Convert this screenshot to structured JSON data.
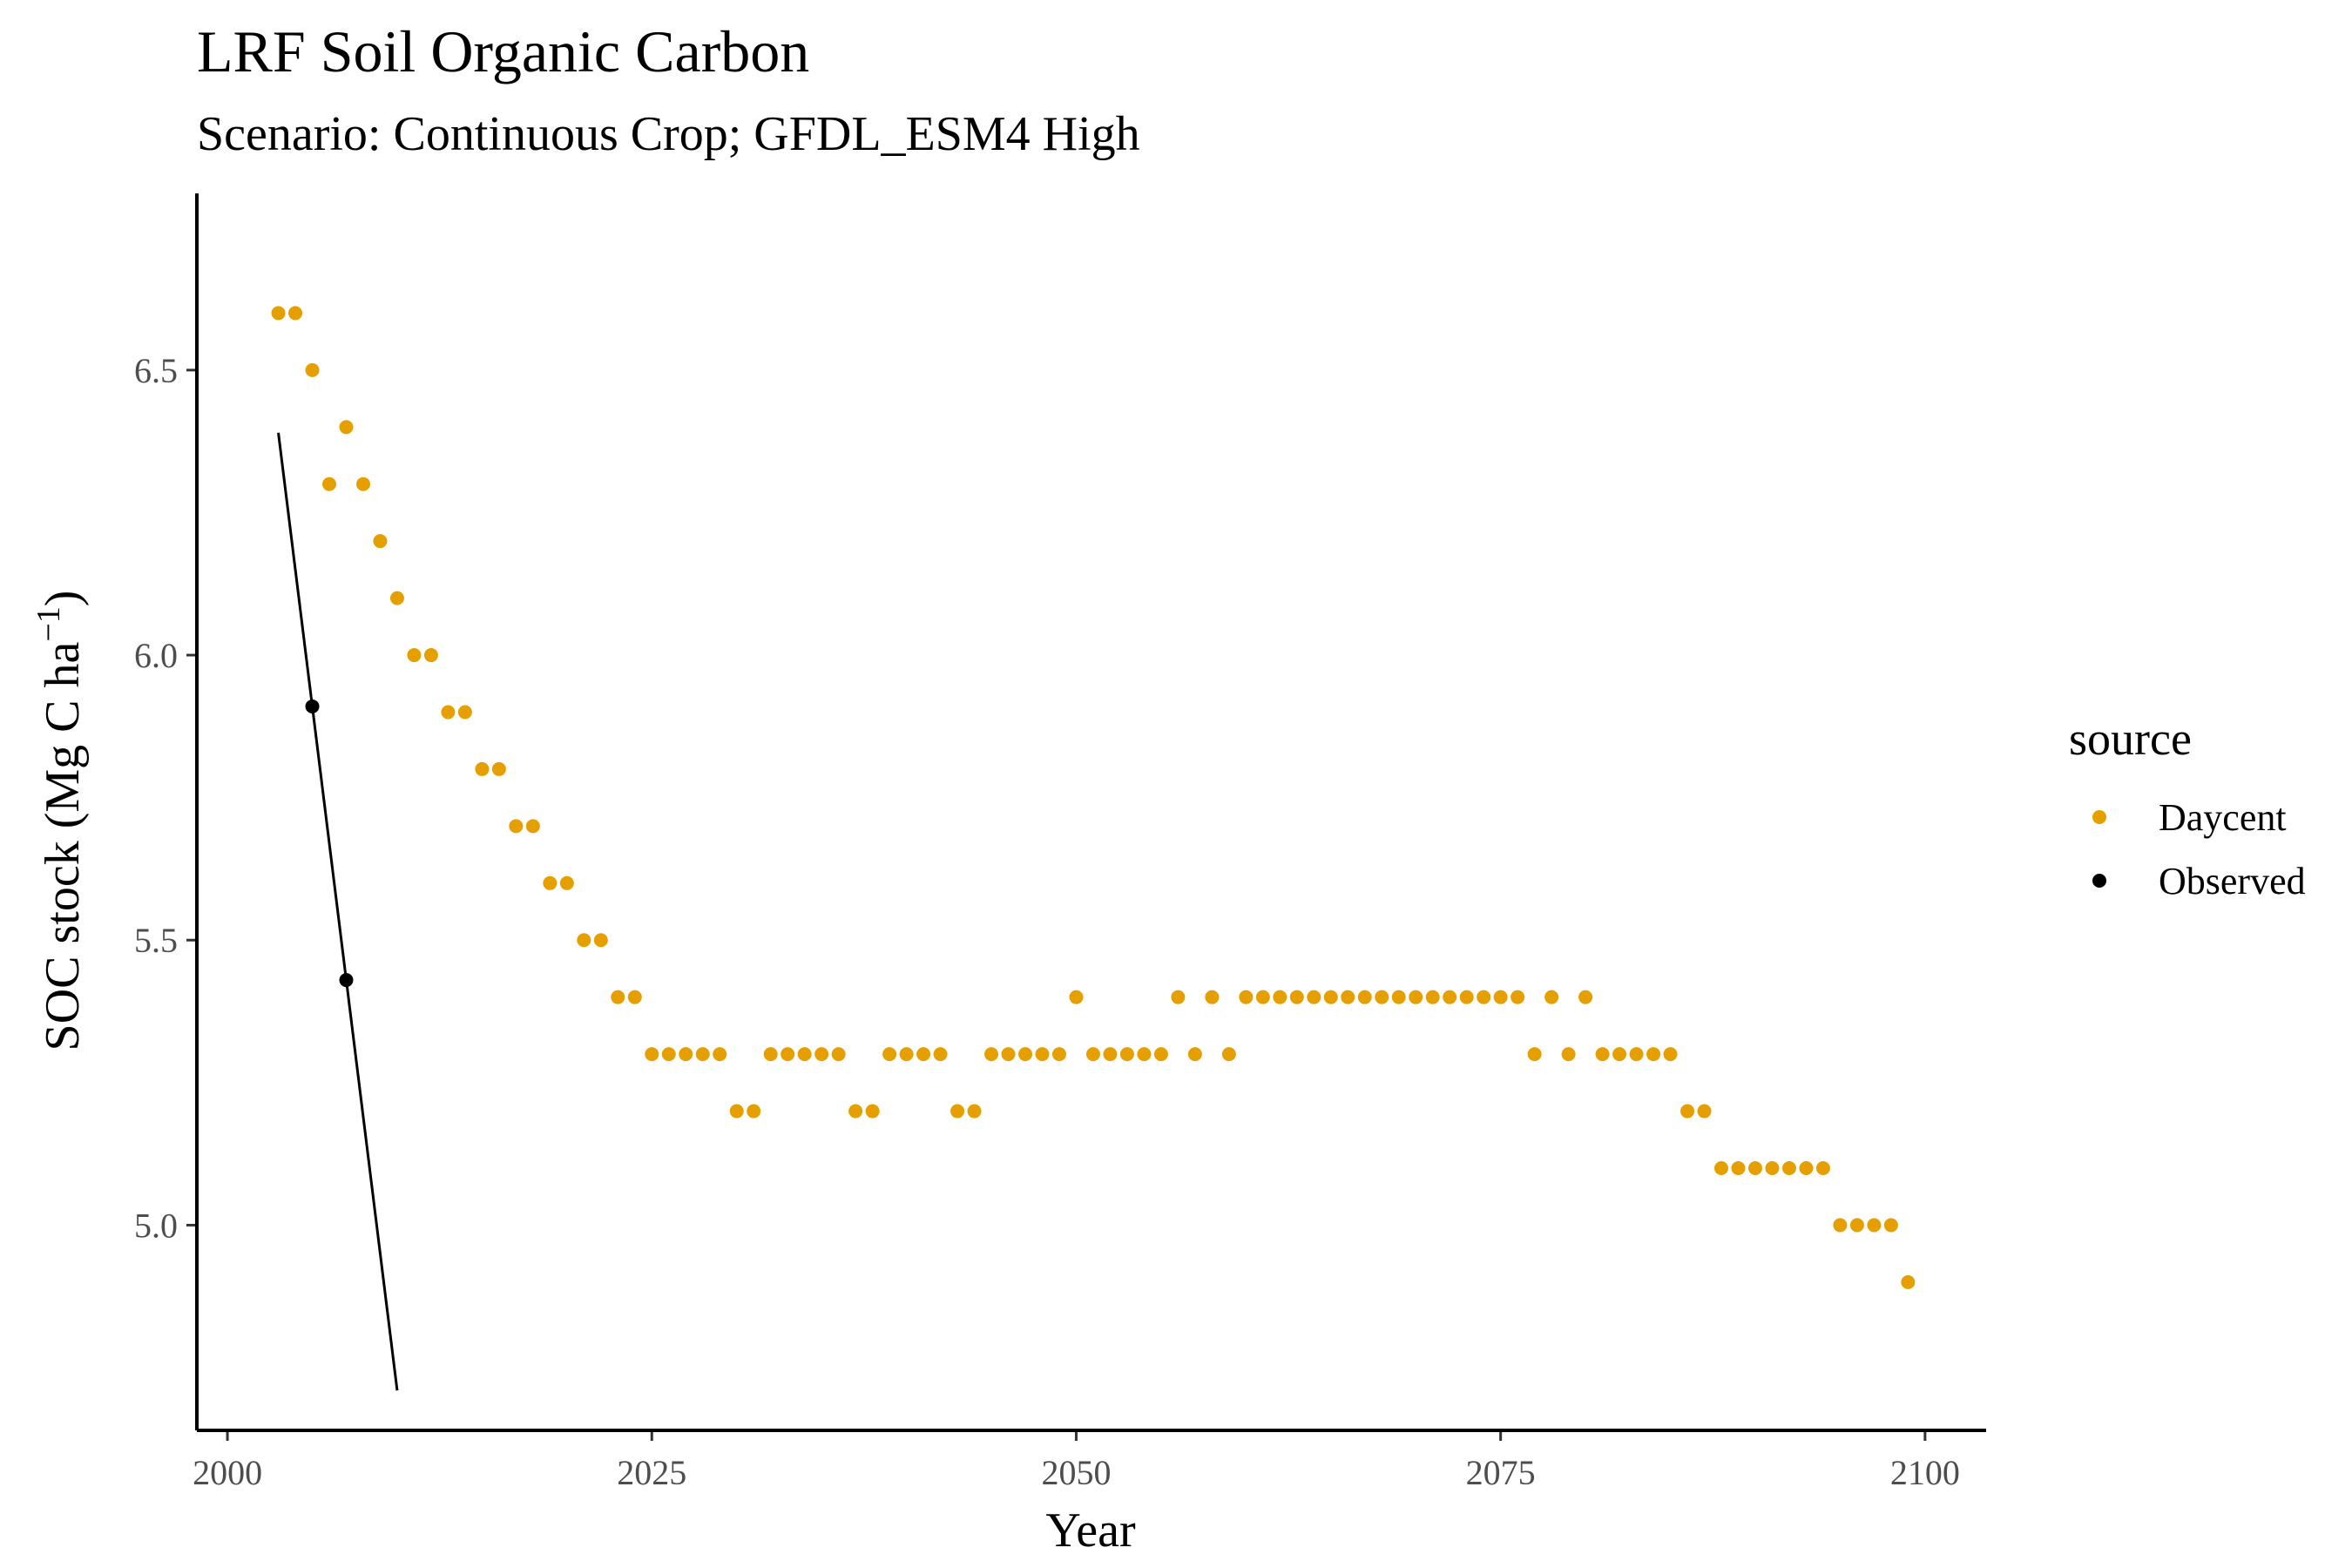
{
  "title": "LRF Soil Organic Carbon",
  "subtitle": "Scenario: Continuous Crop; GFDL_ESM4 High",
  "colors": {
    "daycent": "#E69F00",
    "observed": "#000000",
    "axis": "#000000",
    "tick_text": "#4d4d4d"
  },
  "chart_data": {
    "type": "scatter",
    "title": "LRF Soil Organic Carbon",
    "subtitle": "Scenario: Continuous Crop; GFDL_ESM4 High",
    "xlabel": "Year",
    "ylabel_main": "SOC stock (Mg C ha",
    "ylabel_sup": "−1",
    "ylabel_close": ")",
    "xlim": [
      1998.2,
      2103.6
    ],
    "ylim": [
      4.64,
      6.81
    ],
    "x_ticks": [
      2000,
      2025,
      2050,
      2075,
      2100
    ],
    "y_ticks": [
      5.0,
      5.5,
      6.0,
      6.5
    ],
    "y_tick_labels": [
      "5.0",
      "5.5",
      "6.0",
      "6.5"
    ],
    "grid": false,
    "legend": {
      "title": "source",
      "position": "right",
      "entries": [
        "Daycent",
        "Observed"
      ]
    },
    "series": [
      {
        "name": "Daycent",
        "x": [
          2003,
          2004,
          2005,
          2006,
          2007,
          2008,
          2009,
          2010,
          2011,
          2012,
          2013,
          2014,
          2015,
          2016,
          2017,
          2018,
          2019,
          2020,
          2021,
          2022,
          2023,
          2024,
          2025,
          2026,
          2027,
          2028,
          2029,
          2030,
          2031,
          2032,
          2033,
          2034,
          2035,
          2036,
          2037,
          2038,
          2039,
          2040,
          2041,
          2042,
          2043,
          2044,
          2045,
          2046,
          2047,
          2048,
          2049,
          2050,
          2051,
          2052,
          2053,
          2054,
          2055,
          2056,
          2057,
          2058,
          2059,
          2060,
          2061,
          2062,
          2063,
          2064,
          2065,
          2066,
          2067,
          2068,
          2069,
          2070,
          2071,
          2072,
          2073,
          2074,
          2075,
          2076,
          2077,
          2078,
          2079,
          2080,
          2081,
          2082,
          2083,
          2084,
          2085,
          2086,
          2087,
          2088,
          2089,
          2090,
          2091,
          2092,
          2093,
          2094,
          2095,
          2096,
          2097,
          2098,
          2099
        ],
        "y": [
          6.6,
          6.6,
          6.5,
          6.3,
          6.4,
          6.3,
          6.2,
          6.1,
          6.0,
          6.0,
          5.9,
          5.9,
          5.8,
          5.8,
          5.7,
          5.7,
          5.6,
          5.6,
          5.5,
          5.5,
          5.4,
          5.4,
          5.3,
          5.3,
          5.3,
          5.3,
          5.3,
          5.2,
          5.2,
          5.3,
          5.3,
          5.3,
          5.3,
          5.3,
          5.2,
          5.2,
          5.3,
          5.3,
          5.3,
          5.3,
          5.2,
          5.2,
          5.3,
          5.3,
          5.3,
          5.3,
          5.3,
          5.4,
          5.3,
          5.3,
          5.3,
          5.3,
          5.3,
          5.4,
          5.3,
          5.4,
          5.3,
          5.4,
          5.4,
          5.4,
          5.4,
          5.4,
          5.4,
          5.4,
          5.4,
          5.4,
          5.4,
          5.4,
          5.4,
          5.4,
          5.4,
          5.4,
          5.4,
          5.4,
          5.3,
          5.4,
          5.3,
          5.4,
          5.3,
          5.3,
          5.3,
          5.3,
          5.3,
          5.2,
          5.2,
          5.1,
          5.1,
          5.1,
          5.1,
          5.1,
          5.1,
          5.1,
          5.0,
          5.0,
          5.0,
          5.0,
          4.9
        ]
      },
      {
        "name": "Observed",
        "x": [
          2005,
          2007
        ],
        "y": [
          5.91,
          5.43
        ]
      }
    ],
    "trend_line": {
      "x": [
        2003,
        2010
      ],
      "y": [
        6.39,
        4.71
      ]
    }
  }
}
